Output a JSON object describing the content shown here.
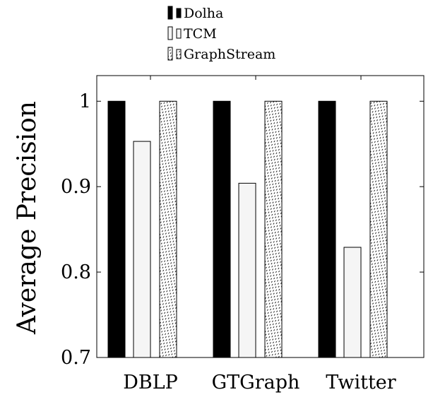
{
  "chart_data": {
    "type": "bar",
    "title": "",
    "xlabel": "",
    "ylabel": "Average Precision",
    "ylim": [
      0.7,
      1.03
    ],
    "yticks": [
      0.7,
      0.8,
      0.9,
      1
    ],
    "ytick_labels": [
      "0.7",
      "0.8",
      "0.9",
      "1"
    ],
    "categories": [
      "DBLP",
      "GTGraph",
      "Twitter"
    ],
    "series": [
      {
        "name": "Dolha",
        "values": [
          1.0,
          1.0,
          1.0
        ],
        "fill": "#000000",
        "pattern": "solid"
      },
      {
        "name": "TCM",
        "values": [
          0.953,
          0.904,
          0.829
        ],
        "fill": "#f5f5f5",
        "pattern": "solid"
      },
      {
        "name": "GraphStream",
        "values": [
          1.0,
          1.0,
          1.0
        ],
        "fill": "#ffffff",
        "pattern": "dots"
      }
    ],
    "legend_position": "top",
    "grid": false
  }
}
